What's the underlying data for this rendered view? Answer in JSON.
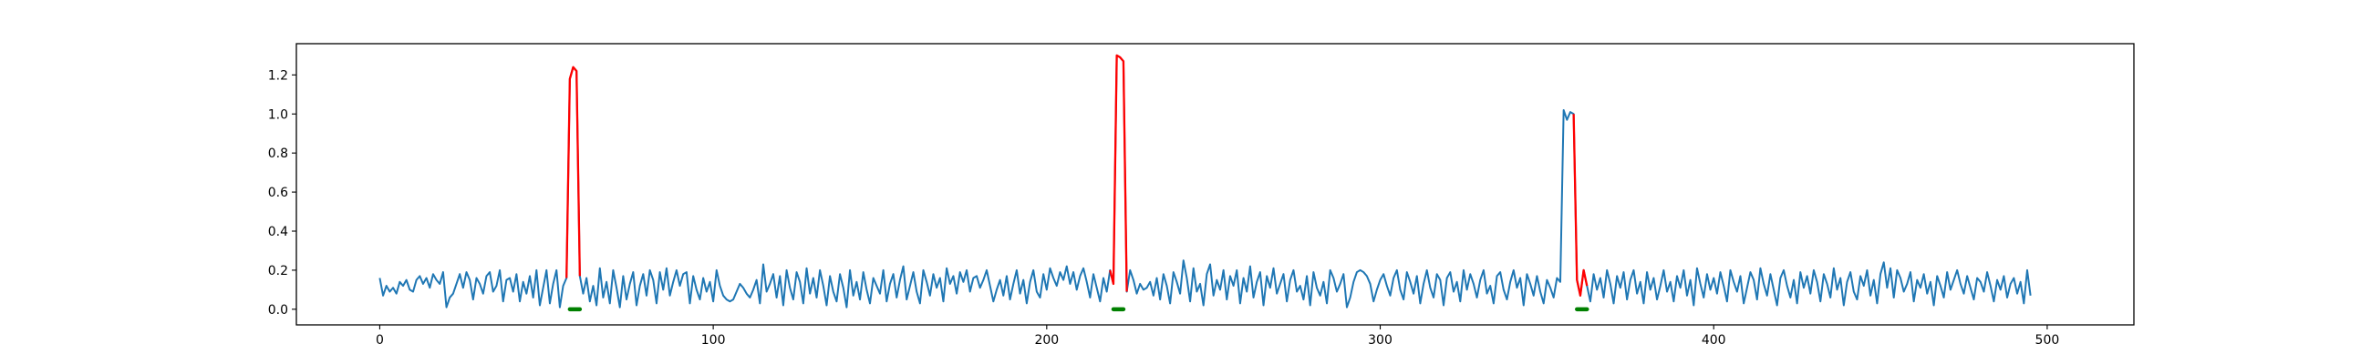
{
  "chart_data": {
    "type": "line",
    "title": "",
    "xlabel": "",
    "ylabel": "",
    "xlim": [
      -25,
      526
    ],
    "ylim": [
      -0.08,
      1.36
    ],
    "x_ticks": [
      0,
      100,
      200,
      300,
      400,
      500
    ],
    "y_ticks": [
      0.0,
      0.2,
      0.4,
      0.6,
      0.8,
      1.0,
      1.2
    ],
    "x_tick_labels": [
      "0",
      "100",
      "200",
      "300",
      "400",
      "500"
    ],
    "y_tick_labels": [
      "0.0",
      "0.2",
      "0.4",
      "0.6",
      "0.8",
      "1.0",
      "1.2"
    ],
    "grid": false,
    "legend": "none",
    "series": [
      {
        "role": "signal",
        "color": "#1f77b4",
        "x_start": 0,
        "x_step": 1,
        "values": [
          0.16,
          0.07,
          0.12,
          0.09,
          0.11,
          0.08,
          0.14,
          0.12,
          0.15,
          0.1,
          0.09,
          0.15,
          0.17,
          0.13,
          0.16,
          0.11,
          0.18,
          0.15,
          0.13,
          0.19,
          0.01,
          0.06,
          0.08,
          0.13,
          0.18,
          0.11,
          0.19,
          0.15,
          0.05,
          0.16,
          0.13,
          0.08,
          0.17,
          0.19,
          0.09,
          0.12,
          0.2,
          0.04,
          0.15,
          0.16,
          0.09,
          0.18,
          0.04,
          0.14,
          0.08,
          0.17,
          0.06,
          0.2,
          0.02,
          0.11,
          0.2,
          0.03,
          0.13,
          0.2,
          0.01,
          0.12,
          0.16,
          1.18,
          1.24,
          1.22,
          0.17,
          0.08,
          0.16,
          0.04,
          0.12,
          0.02,
          0.21,
          0.06,
          0.14,
          0.03,
          0.2,
          0.11,
          0.01,
          0.17,
          0.05,
          0.13,
          0.19,
          0.02,
          0.12,
          0.18,
          0.07,
          0.2,
          0.15,
          0.03,
          0.19,
          0.1,
          0.21,
          0.07,
          0.14,
          0.2,
          0.12,
          0.18,
          0.19,
          0.03,
          0.17,
          0.1,
          0.05,
          0.16,
          0.09,
          0.14,
          0.04,
          0.2,
          0.12,
          0.07,
          0.05,
          0.04,
          0.05,
          0.09,
          0.13,
          0.11,
          0.08,
          0.06,
          0.1,
          0.15,
          0.03,
          0.23,
          0.09,
          0.13,
          0.18,
          0.06,
          0.17,
          0.02,
          0.2,
          0.11,
          0.05,
          0.19,
          0.14,
          0.03,
          0.21,
          0.08,
          0.16,
          0.06,
          0.2,
          0.12,
          0.02,
          0.17,
          0.09,
          0.04,
          0.18,
          0.11,
          0.01,
          0.2,
          0.07,
          0.14,
          0.05,
          0.19,
          0.1,
          0.03,
          0.16,
          0.12,
          0.08,
          0.2,
          0.04,
          0.13,
          0.18,
          0.06,
          0.15,
          0.22,
          0.05,
          0.12,
          0.19,
          0.09,
          0.03,
          0.2,
          0.14,
          0.07,
          0.18,
          0.11,
          0.16,
          0.04,
          0.21,
          0.13,
          0.17,
          0.08,
          0.19,
          0.14,
          0.2,
          0.09,
          0.16,
          0.17,
          0.11,
          0.15,
          0.2,
          0.12,
          0.04,
          0.1,
          0.15,
          0.07,
          0.17,
          0.05,
          0.13,
          0.2,
          0.08,
          0.15,
          0.03,
          0.14,
          0.2,
          0.09,
          0.06,
          0.18,
          0.1,
          0.21,
          0.16,
          0.12,
          0.19,
          0.15,
          0.22,
          0.13,
          0.19,
          0.1,
          0.17,
          0.21,
          0.14,
          0.06,
          0.18,
          0.11,
          0.04,
          0.16,
          0.09,
          0.2,
          0.13,
          1.3,
          1.29,
          1.27,
          0.09,
          0.2,
          0.15,
          0.08,
          0.13,
          0.1,
          0.11,
          0.14,
          0.07,
          0.16,
          0.05,
          0.18,
          0.12,
          0.03,
          0.19,
          0.14,
          0.08,
          0.25,
          0.16,
          0.04,
          0.21,
          0.09,
          0.13,
          0.02,
          0.18,
          0.23,
          0.07,
          0.15,
          0.1,
          0.2,
          0.05,
          0.17,
          0.12,
          0.2,
          0.03,
          0.16,
          0.09,
          0.22,
          0.06,
          0.14,
          0.19,
          0.02,
          0.17,
          0.11,
          0.21,
          0.08,
          0.13,
          0.18,
          0.04,
          0.15,
          0.2,
          0.09,
          0.12,
          0.05,
          0.17,
          0.02,
          0.19,
          0.11,
          0.07,
          0.14,
          0.03,
          0.2,
          0.16,
          0.09,
          0.13,
          0.18,
          0.01,
          0.06,
          0.14,
          0.19,
          0.2,
          0.19,
          0.17,
          0.13,
          0.04,
          0.1,
          0.15,
          0.18,
          0.12,
          0.07,
          0.16,
          0.2,
          0.1,
          0.05,
          0.19,
          0.14,
          0.08,
          0.17,
          0.03,
          0.13,
          0.2,
          0.11,
          0.06,
          0.18,
          0.15,
          0.02,
          0.16,
          0.19,
          0.09,
          0.14,
          0.04,
          0.2,
          0.1,
          0.18,
          0.13,
          0.06,
          0.15,
          0.2,
          0.08,
          0.12,
          0.03,
          0.17,
          0.19,
          0.1,
          0.05,
          0.14,
          0.2,
          0.11,
          0.16,
          0.02,
          0.18,
          0.13,
          0.07,
          0.17,
          0.09,
          0.03,
          0.15,
          0.11,
          0.06,
          0.16,
          0.14,
          1.02,
          0.97,
          1.01,
          1.0,
          0.15,
          0.07,
          0.2,
          0.12,
          0.04,
          0.18,
          0.1,
          0.16,
          0.06,
          0.2,
          0.13,
          0.03,
          0.17,
          0.11,
          0.19,
          0.05,
          0.15,
          0.2,
          0.08,
          0.14,
          0.03,
          0.19,
          0.1,
          0.16,
          0.05,
          0.12,
          0.2,
          0.09,
          0.14,
          0.04,
          0.17,
          0.11,
          0.2,
          0.07,
          0.15,
          0.02,
          0.21,
          0.13,
          0.06,
          0.18,
          0.1,
          0.16,
          0.08,
          0.19,
          0.12,
          0.04,
          0.2,
          0.14,
          0.09,
          0.17,
          0.03,
          0.11,
          0.19,
          0.15,
          0.05,
          0.21,
          0.13,
          0.07,
          0.18,
          0.1,
          0.02,
          0.16,
          0.2,
          0.12,
          0.06,
          0.15,
          0.03,
          0.19,
          0.11,
          0.17,
          0.08,
          0.2,
          0.14,
          0.04,
          0.18,
          0.13,
          0.06,
          0.21,
          0.1,
          0.16,
          0.02,
          0.14,
          0.19,
          0.09,
          0.05,
          0.17,
          0.12,
          0.2,
          0.07,
          0.15,
          0.03,
          0.18,
          0.24,
          0.11,
          0.21,
          0.06,
          0.2,
          0.16,
          0.09,
          0.13,
          0.19,
          0.04,
          0.15,
          0.11,
          0.18,
          0.08,
          0.14,
          0.02,
          0.17,
          0.12,
          0.06,
          0.19,
          0.1,
          0.15,
          0.2,
          0.13,
          0.08,
          0.17,
          0.11,
          0.05,
          0.16,
          0.14,
          0.09,
          0.19,
          0.12,
          0.04,
          0.15,
          0.1,
          0.17,
          0.06,
          0.13,
          0.16,
          0.08,
          0.14,
          0.03,
          0.2,
          0.07
        ]
      }
    ],
    "anomaly_segments": [
      {
        "x_start": 56,
        "x_end": 60,
        "color": "#ff0000"
      },
      {
        "x_start": 219,
        "x_end": 224,
        "color": "#ff0000"
      },
      {
        "x_start": 358,
        "x_end": 362,
        "color": "#ff0000"
      }
    ],
    "anomaly_markers": [
      {
        "x_start": 57,
        "x_end": 60,
        "y": 0.0,
        "color": "#008000"
      },
      {
        "x_start": 220,
        "x_end": 223,
        "y": 0.0,
        "color": "#008000"
      },
      {
        "x_start": 359,
        "x_end": 362,
        "y": 0.0,
        "color": "#008000"
      }
    ]
  }
}
